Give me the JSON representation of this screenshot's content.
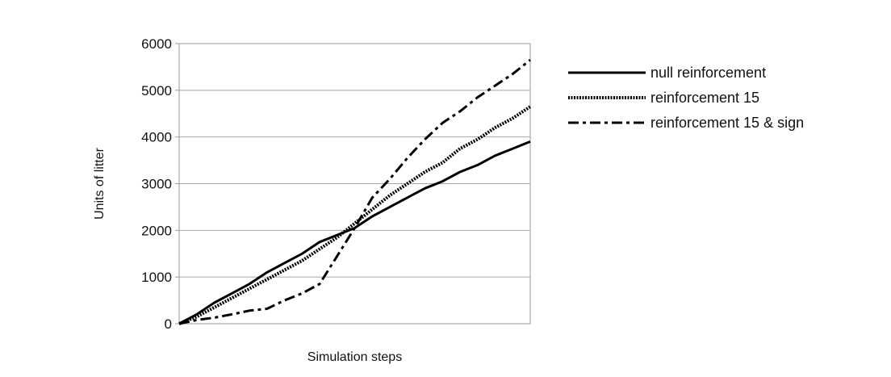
{
  "chart_data": {
    "type": "line",
    "title": "",
    "xlabel": "Simulation steps",
    "ylabel": "Units of litter",
    "ylim": [
      0,
      6000
    ],
    "y_ticks": [
      0,
      1000,
      2000,
      3000,
      4000,
      5000,
      6000
    ],
    "xlim": [
      0,
      100
    ],
    "grid": "horizontal",
    "legend_placement": "right",
    "series": [
      {
        "name": "null reinforcement",
        "style": "solid",
        "color": "#000000",
        "x": [
          0,
          5,
          10,
          15,
          20,
          25,
          30,
          35,
          40,
          45,
          50,
          55,
          60,
          65,
          70,
          75,
          80,
          85,
          90,
          95,
          100
        ],
        "y": [
          0,
          200,
          450,
          650,
          850,
          1100,
          1300,
          1500,
          1750,
          1900,
          2050,
          2300,
          2500,
          2700,
          2900,
          3050,
          3250,
          3400,
          3600,
          3750,
          3900
        ]
      },
      {
        "name": "reinforcement 15",
        "style": "dotted",
        "color": "#000000",
        "x": [
          0,
          5,
          10,
          15,
          20,
          25,
          30,
          35,
          40,
          45,
          50,
          55,
          60,
          65,
          70,
          75,
          80,
          85,
          90,
          95,
          100
        ],
        "y": [
          0,
          150,
          350,
          550,
          750,
          950,
          1150,
          1350,
          1600,
          1850,
          2150,
          2450,
          2750,
          3000,
          3250,
          3450,
          3750,
          3950,
          4200,
          4400,
          4650
        ]
      },
      {
        "name": "reinforcement 15 & sign",
        "style": "dashdot",
        "color": "#000000",
        "x": [
          0,
          5,
          10,
          15,
          20,
          25,
          30,
          35,
          40,
          45,
          50,
          55,
          60,
          65,
          70,
          75,
          80,
          85,
          90,
          95,
          100
        ],
        "y": [
          0,
          80,
          130,
          200,
          280,
          320,
          500,
          650,
          850,
          1450,
          2050,
          2700,
          3100,
          3550,
          3950,
          4300,
          4550,
          4850,
          5100,
          5350,
          5650
        ]
      }
    ]
  }
}
